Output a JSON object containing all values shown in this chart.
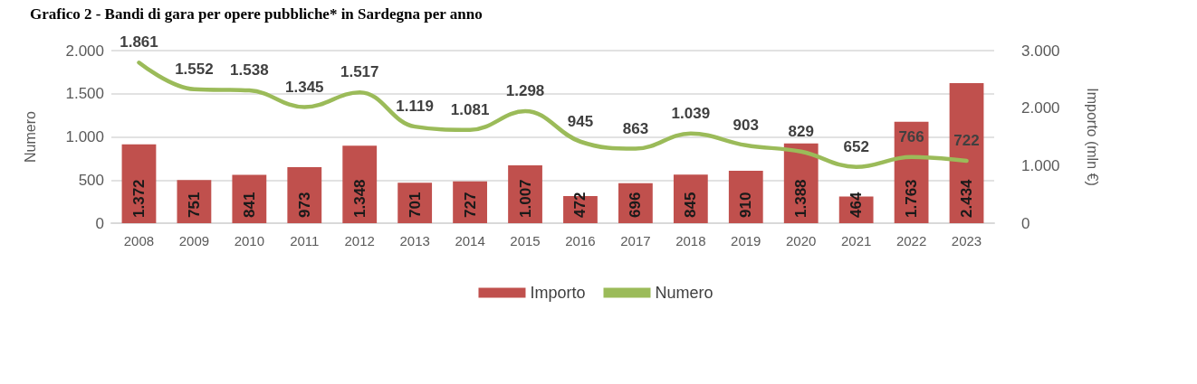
{
  "chart_data": {
    "type": "bar",
    "title": "Grafico 2 - Bandi di gara per opere pubbliche* in Sardegna per anno",
    "ylabel": "Numero",
    "y2label": "Importo (mln €)",
    "categories": [
      "2008",
      "2009",
      "2010",
      "2011",
      "2012",
      "2013",
      "2014",
      "2015",
      "2016",
      "2017",
      "2018",
      "2019",
      "2020",
      "2021",
      "2022",
      "2023"
    ],
    "series": [
      {
        "name": "Importo",
        "axis": "y2",
        "color": "#c0504d",
        "values": [
          1372,
          751,
          841,
          973,
          1348,
          701,
          727,
          1007,
          472,
          696,
          845,
          910,
          1388,
          464,
          1763,
          2434
        ],
        "value_labels": [
          "1.372",
          "751",
          "841",
          "973",
          "1.348",
          "701",
          "727",
          "1.007",
          "472",
          "696",
          "845",
          "910",
          "1.388",
          "464",
          "1.763",
          "2.434"
        ]
      },
      {
        "name": "Numero",
        "type": "line",
        "color": "#9bbb59",
        "values": [
          1861,
          1552,
          1538,
          1345,
          1517,
          1119,
          1081,
          1298,
          945,
          863,
          1039,
          903,
          829,
          652,
          766,
          722
        ],
        "value_labels": [
          "1.861",
          "1.552",
          "1.538",
          "1.345",
          "1.517",
          "1.119",
          "1.081",
          "1.298",
          "945",
          "863",
          "1.039",
          "903",
          "829",
          "652",
          "766",
          "722"
        ]
      }
    ],
    "ylim": [
      0,
      2000
    ],
    "yticks": [
      0,
      500,
      {
        "value": 1000,
        "label": "1.000"
      },
      {
        "value": 1500,
        "label": "1.500"
      },
      {
        "value": 2000,
        "label": "2.000"
      }
    ],
    "y2lim": [
      0,
      3000
    ],
    "y2ticks": [
      0,
      {
        "value": 1000,
        "label": "1.000"
      },
      {
        "value": 2000,
        "label": "2.000"
      },
      {
        "value": 3000,
        "label": "3.000"
      }
    ],
    "grid": "y",
    "legend": "bottom",
    "marker": "none",
    "line_style": "solid"
  }
}
